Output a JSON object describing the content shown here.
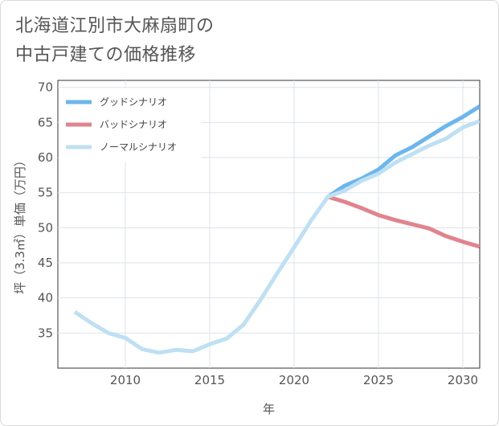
{
  "title_lines": [
    "北海道江別市大麻扇町の",
    "中古戸建ての価格推移"
  ],
  "chart_data": {
    "type": "line",
    "title": "北海道江別市大麻扇町の中古戸建ての価格推移",
    "xlabel": "年",
    "ylabel": "坪（3.3㎡）単価（万円）",
    "xlim": [
      2006,
      2031
    ],
    "ylim": [
      30,
      71
    ],
    "xticks": [
      2010,
      2015,
      2020,
      2025,
      2030
    ],
    "yticks": [
      35,
      40,
      45,
      50,
      55,
      60,
      65,
      70
    ],
    "grid": true,
    "legend_position": "top-left",
    "series": [
      {
        "name": "グッドシナリオ",
        "color": "#6cb6ec",
        "x": [
          2022,
          2023,
          2024,
          2025,
          2026,
          2027,
          2028,
          2029,
          2030,
          2031
        ],
        "y": [
          54.4,
          56.0,
          57.0,
          58.3,
          60.3,
          61.5,
          63.0,
          64.5,
          65.8,
          67.3
        ]
      },
      {
        "name": "バッドシナリオ",
        "color": "#e0848e",
        "x": [
          2022,
          2023,
          2024,
          2025,
          2026,
          2027,
          2028,
          2029,
          2030,
          2031
        ],
        "y": [
          54.4,
          53.7,
          52.8,
          51.8,
          51.1,
          50.5,
          49.9,
          48.8,
          48.0,
          47.3
        ]
      },
      {
        "name": "ノーマルシナリオ",
        "color": "#bfe0f2",
        "x": [
          2007,
          2008,
          2009,
          2010,
          2011,
          2012,
          2013,
          2014,
          2015,
          2016,
          2017,
          2018,
          2019,
          2020,
          2021,
          2022,
          2023,
          2024,
          2025,
          2026,
          2027,
          2028,
          2029,
          2030,
          2031
        ],
        "y": [
          38.0,
          36.4,
          35.0,
          34.3,
          32.7,
          32.2,
          32.6,
          32.4,
          33.4,
          34.2,
          36.2,
          39.7,
          43.5,
          47.2,
          51.0,
          54.4,
          55.3,
          56.7,
          57.7,
          59.3,
          60.5,
          61.7,
          62.7,
          64.3,
          65.2
        ]
      }
    ]
  }
}
